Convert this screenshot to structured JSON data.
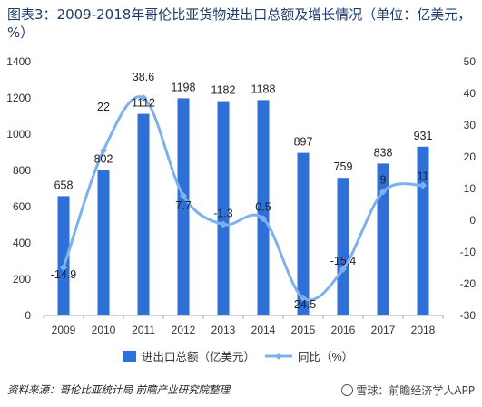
{
  "title": "图表3：2009-2018年哥伦比亚货物进出口总额及增长情况（单位：亿美元，%）",
  "footer": {
    "source": "资料来源：哥伦比亚统计局  前瞻产业研究院整理",
    "watermark": "雪球：前瞻经济学人APP"
  },
  "colors": {
    "bar": "#2f6fd8",
    "line": "#7fb0ee",
    "axis": "#aaaaaa"
  },
  "chart_data": {
    "type": "bar+line",
    "categories": [
      "2009",
      "2010",
      "2011",
      "2012",
      "2013",
      "2014",
      "2015",
      "2016",
      "2017",
      "2018"
    ],
    "series": [
      {
        "name": "进出口总额（亿美元）",
        "type": "bar",
        "axis": "left",
        "values": [
          658,
          802,
          1112,
          1198,
          1182,
          1188,
          897,
          759,
          838,
          931
        ],
        "labels": [
          "658",
          "802",
          "1112",
          "1198",
          "1182",
          "1188",
          "897",
          "759",
          "838",
          "931"
        ]
      },
      {
        "name": "同比（%）",
        "type": "line",
        "axis": "right",
        "values": [
          -14.9,
          22,
          38.6,
          7.7,
          -1.3,
          0.5,
          -24.5,
          -15.4,
          9,
          11
        ],
        "labels": [
          "-14.9",
          "22",
          "38.6",
          "7.7",
          "-1.3",
          "0.5",
          "-24.5",
          "-15.4",
          "9",
          "11"
        ]
      }
    ],
    "y_left": {
      "min": 0,
      "max": 1400,
      "ticks": [
        "0",
        "200",
        "400",
        "600",
        "800",
        "1000",
        "1200",
        "1400"
      ]
    },
    "y_right": {
      "min": -30,
      "max": 50,
      "ticks": [
        "-30",
        "-20",
        "-10",
        "0",
        "10",
        "20",
        "30",
        "40",
        "50"
      ]
    },
    "legend": "bottom"
  }
}
